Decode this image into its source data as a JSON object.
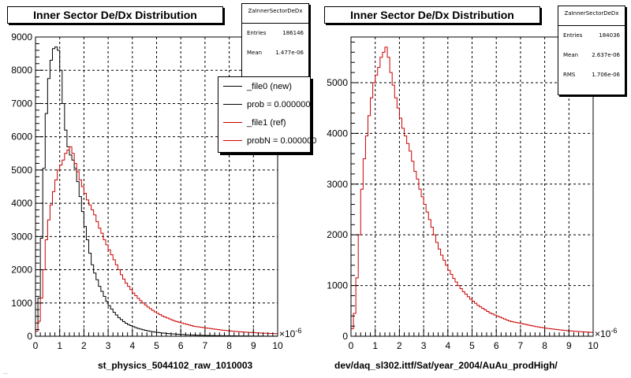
{
  "panels": [
    {
      "title": "Inner Sector De/Dx Distribution",
      "stats": {
        "title": "ZaInnerSectorDeDx",
        "rows": [
          {
            "label": "Entries",
            "value": "186146"
          },
          {
            "label": "Mean",
            "value": "1.477e-06"
          }
        ]
      },
      "legend": [
        {
          "label": "_file0 (new)",
          "color": "#000000"
        },
        {
          "label": "prob = 0.000000",
          "color": "#000000"
        },
        {
          "label": "_file1 (ref)",
          "color": "#cc0000"
        },
        {
          "label": "probN = 0.000000",
          "color": "#cc0000"
        }
      ],
      "x_caption": "st_physics_5044102_raw_1010003",
      "x_exponent": "×10",
      "x_exponent_power": "-6"
    },
    {
      "title": "Inner Sector De/Dx Distribution",
      "stats": {
        "title": "ZaInnerSectorDeDx",
        "rows": [
          {
            "label": "Entries",
            "value": "184036"
          },
          {
            "label": "Mean",
            "value": "2.637e-06"
          },
          {
            "label": "RMS",
            "value": "1.706e-06"
          }
        ]
      },
      "legend": [],
      "x_caption": "dev/daq_sl302.ittf/Sat/year_2004/AuAu_prodHigh/",
      "x_exponent": "×10",
      "x_exponent_power": "-6"
    }
  ],
  "footer_note": "...",
  "chart_data": [
    {
      "type": "histogram",
      "title": "Inner Sector De/Dx Distribution",
      "xlabel": "st_physics_5044102_raw_1010003",
      "x_scale_note": "×10^-6",
      "xlim": [
        0,
        10
      ],
      "ylim": [
        0,
        9000
      ],
      "x_ticks": [
        0,
        1,
        2,
        3,
        4,
        5,
        6,
        7,
        8,
        9,
        10
      ],
      "y_ticks": [
        0,
        1000,
        2000,
        3000,
        4000,
        5000,
        6000,
        7000,
        8000,
        9000
      ],
      "grid": true,
      "bin_width": 0.1,
      "x_start": 0,
      "series": [
        {
          "name": "_file0 (new)",
          "color": "#000000",
          "values": [
            200,
            1150,
            2950,
            5050,
            6700,
            7750,
            8300,
            8650,
            8700,
            8600,
            8000,
            7000,
            6200,
            5700,
            5450,
            5300,
            5050,
            4650,
            4200,
            3750,
            3300,
            2900,
            2500,
            2150,
            1900,
            1700,
            1500,
            1350,
            1200,
            1050,
            920,
            820,
            720,
            640,
            560,
            500,
            440,
            390,
            350,
            320,
            290,
            260,
            235,
            215,
            195,
            178,
            162,
            148,
            136,
            125,
            115,
            106,
            98,
            91,
            84,
            78,
            72,
            67,
            62,
            57,
            53,
            49,
            45,
            42,
            39,
            36,
            33,
            31,
            29,
            27,
            25,
            23,
            21,
            20,
            19,
            18,
            17,
            16,
            15,
            14,
            13,
            12,
            11,
            10,
            9,
            9,
            8,
            8,
            7,
            7,
            6,
            6,
            5,
            5,
            4,
            4,
            4,
            3,
            3,
            3
          ]
        },
        {
          "name": "_file1 (ref)",
          "color": "#cc0000",
          "values": [
            150,
            450,
            1150,
            2000,
            2900,
            3500,
            3950,
            4350,
            4700,
            5000,
            5150,
            5300,
            5500,
            5600,
            5700,
            5500,
            5200,
            4950,
            4700,
            4500,
            4300,
            4100,
            3950,
            3800,
            3650,
            3450,
            3250,
            3100,
            2900,
            2750,
            2600,
            2450,
            2300,
            2150,
            2000,
            1850,
            1720,
            1600,
            1500,
            1400,
            1300,
            1220,
            1140,
            1070,
            1000,
            940,
            880,
            830,
            780,
            730,
            690,
            650,
            610,
            580,
            550,
            520,
            490,
            460,
            440,
            420,
            400,
            380,
            360,
            340,
            320,
            300,
            290,
            280,
            270,
            260,
            250,
            240,
            230,
            220,
            210,
            200,
            190,
            182,
            175,
            168,
            160,
            154,
            148,
            142,
            136,
            130,
            125,
            120,
            115,
            110,
            106,
            102,
            98,
            95,
            92,
            89,
            86,
            83,
            80,
            78
          ]
        }
      ]
    },
    {
      "type": "histogram",
      "title": "Inner Sector De/Dx Distribution",
      "xlabel": "dev/daq_sl302.ittf/Sat/year_2004/AuAu_prodHigh/",
      "x_scale_note": "×10^-6",
      "xlim": [
        0,
        10
      ],
      "ylim": [
        0,
        5900
      ],
      "x_ticks": [
        0,
        1,
        2,
        3,
        4,
        5,
        6,
        7,
        8,
        9,
        10
      ],
      "y_ticks": [
        0,
        1000,
        2000,
        3000,
        4000,
        5000
      ],
      "grid": true,
      "bin_width": 0.1,
      "x_start": 0,
      "series": [
        {
          "name": "_file1 (ref)",
          "color": "#cc0000",
          "values": [
            150,
            450,
            1150,
            2000,
            2900,
            3500,
            3950,
            4350,
            4700,
            5000,
            5150,
            5300,
            5500,
            5600,
            5700,
            5500,
            5200,
            4950,
            4700,
            4500,
            4300,
            4100,
            3950,
            3800,
            3650,
            3450,
            3250,
            3100,
            2900,
            2750,
            2600,
            2450,
            2300,
            2150,
            2000,
            1850,
            1720,
            1600,
            1500,
            1400,
            1300,
            1220,
            1140,
            1070,
            1000,
            940,
            880,
            830,
            780,
            730,
            690,
            650,
            610,
            580,
            550,
            520,
            490,
            460,
            440,
            420,
            400,
            380,
            360,
            340,
            320,
            300,
            290,
            280,
            270,
            260,
            250,
            240,
            230,
            220,
            210,
            200,
            190,
            182,
            175,
            168,
            160,
            154,
            148,
            142,
            136,
            130,
            125,
            120,
            115,
            110,
            106,
            102,
            98,
            95,
            92,
            89,
            86,
            83,
            80,
            78
          ]
        }
      ]
    }
  ]
}
